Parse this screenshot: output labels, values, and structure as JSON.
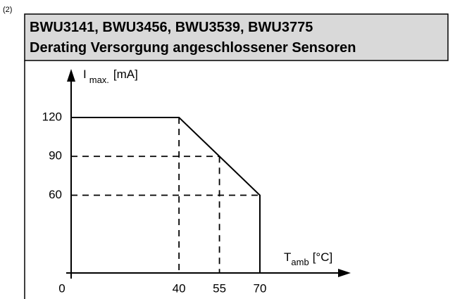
{
  "figure_number": "(2)",
  "chart_data": {
    "type": "line",
    "title": [
      "BWU3141, BWU3456, BWU3539, BWU3775",
      "Derating Versorgung angeschlossener Sensoren"
    ],
    "y_label": {
      "symbol": "I",
      "subscript": "max.",
      "unit": "[mA]"
    },
    "x_label": {
      "symbol": "T",
      "subscript": "amb",
      "unit": "[°C]"
    },
    "x": [
      0,
      40,
      55,
      70,
      70
    ],
    "series": [
      {
        "name": "I max.",
        "color": "#000000",
        "values": [
          120,
          120,
          90,
          60,
          0
        ]
      }
    ],
    "xlim": [
      0,
      70
    ],
    "ylim": [
      0,
      120
    ],
    "xticks": [
      0,
      40,
      55,
      70
    ],
    "yticks": [
      60,
      90,
      120
    ],
    "grid": false
  }
}
